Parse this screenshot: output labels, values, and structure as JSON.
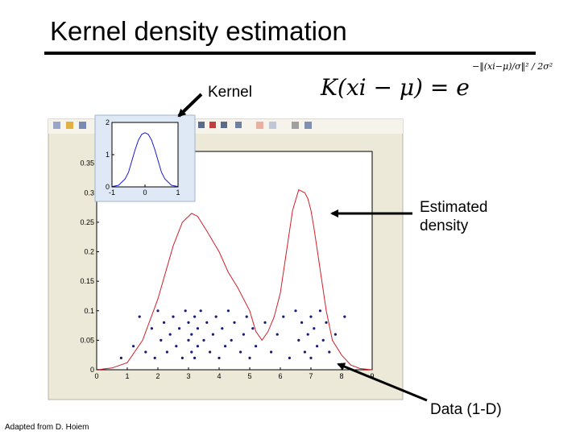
{
  "slide": {
    "title": "Kernel density estimation",
    "kernel_label": "Kernel",
    "density_label": "Estimated density",
    "density_label_line1": "Estimated",
    "density_label_line2": "density",
    "data_label": "Data (1-D)",
    "credit": "Adapted from D. Hoiem",
    "formula_main": "K(xi − μ) = e",
    "formula_exponent": "−‖(xi−μ)/σ‖² / 2σ²"
  },
  "colors": {
    "density_line": "#d0202a",
    "data_points": "#1a1a7a",
    "kernel_line": "#1a1acc",
    "window_bg": "#ece9d8",
    "arrow": "#000000"
  },
  "chart_data": [
    {
      "type": "line",
      "title": "",
      "xlabel": "",
      "ylabel": "",
      "xlim": [
        0,
        9
      ],
      "ylim": [
        0,
        0.37
      ],
      "x_ticks": [
        0,
        1,
        2,
        3,
        4,
        5,
        6,
        7,
        8,
        9
      ],
      "y_ticks": [
        0,
        0.05,
        0.1,
        0.15,
        0.2,
        0.25,
        0.3,
        0.35
      ],
      "y_tick_labels": [
        "0",
        "0.05",
        "0.1",
        "0.15",
        "0.2",
        "0.25",
        "0.3",
        "0.35"
      ],
      "grid": false,
      "series": [
        {
          "kind": "line",
          "x": [
            0,
            0.5,
            1,
            1.5,
            2,
            2.5,
            2.8,
            3.1,
            3.3,
            3.6,
            4,
            4.3,
            4.6,
            5,
            5.2,
            5.4,
            5.6,
            5.8,
            6,
            6.2,
            6.4,
            6.6,
            6.8,
            6.9,
            7,
            7.1,
            7.3,
            7.5,
            7.7,
            8,
            8.3,
            8.6,
            9
          ],
          "y": [
            0,
            0.003,
            0.012,
            0.05,
            0.12,
            0.21,
            0.25,
            0.265,
            0.26,
            0.235,
            0.2,
            0.165,
            0.14,
            0.1,
            0.065,
            0.05,
            0.065,
            0.09,
            0.13,
            0.2,
            0.27,
            0.305,
            0.3,
            0.29,
            0.27,
            0.24,
            0.17,
            0.1,
            0.05,
            0.025,
            0.008,
            0.002,
            0
          ]
        },
        {
          "kind": "scatter",
          "x": [
            0.8,
            1.2,
            1.4,
            1.6,
            1.8,
            1.9,
            2.0,
            2.1,
            2.2,
            2.3,
            2.4,
            2.5,
            2.6,
            2.7,
            2.8,
            2.9,
            3.0,
            3.0,
            3.1,
            3.1,
            3.2,
            3.2,
            3.3,
            3.3,
            3.4,
            3.5,
            3.6,
            3.7,
            3.8,
            3.9,
            4.0,
            4.1,
            4.2,
            4.3,
            4.4,
            4.5,
            4.7,
            4.8,
            4.9,
            5.0,
            5.1,
            5.2,
            5.5,
            5.7,
            5.9,
            6.1,
            6.3,
            6.5,
            6.6,
            6.7,
            6.8,
            6.9,
            7.0,
            7.0,
            7.1,
            7.2,
            7.3,
            7.4,
            7.5,
            7.6,
            7.8,
            8.1
          ],
          "y": [
            0.02,
            0.04,
            0.09,
            0.03,
            0.07,
            0.02,
            0.1,
            0.05,
            0.08,
            0.03,
            0.06,
            0.09,
            0.04,
            0.07,
            0.02,
            0.1,
            0.05,
            0.08,
            0.03,
            0.06,
            0.09,
            0.02,
            0.07,
            0.04,
            0.1,
            0.05,
            0.08,
            0.03,
            0.06,
            0.09,
            0.02,
            0.07,
            0.04,
            0.1,
            0.05,
            0.08,
            0.03,
            0.06,
            0.09,
            0.02,
            0.07,
            0.04,
            0.08,
            0.03,
            0.06,
            0.09,
            0.02,
            0.1,
            0.05,
            0.08,
            0.03,
            0.06,
            0.09,
            0.02,
            0.07,
            0.04,
            0.1,
            0.05,
            0.08,
            0.03,
            0.06,
            0.09
          ]
        }
      ]
    },
    {
      "type": "line",
      "title": "",
      "xlim": [
        -1,
        1
      ],
      "ylim": [
        0,
        2
      ],
      "x_ticks": [
        -1,
        0,
        1
      ],
      "y_ticks": [
        0,
        1,
        2
      ],
      "grid": false,
      "series": [
        {
          "kind": "line",
          "x": [
            -1,
            -0.8,
            -0.6,
            -0.5,
            -0.4,
            -0.3,
            -0.2,
            -0.1,
            0,
            0.1,
            0.2,
            0.3,
            0.4,
            0.5,
            0.6,
            0.8,
            1
          ],
          "y": [
            0.01,
            0.05,
            0.25,
            0.45,
            0.8,
            1.15,
            1.45,
            1.63,
            1.68,
            1.63,
            1.45,
            1.15,
            0.8,
            0.45,
            0.25,
            0.05,
            0.01
          ]
        }
      ]
    }
  ]
}
